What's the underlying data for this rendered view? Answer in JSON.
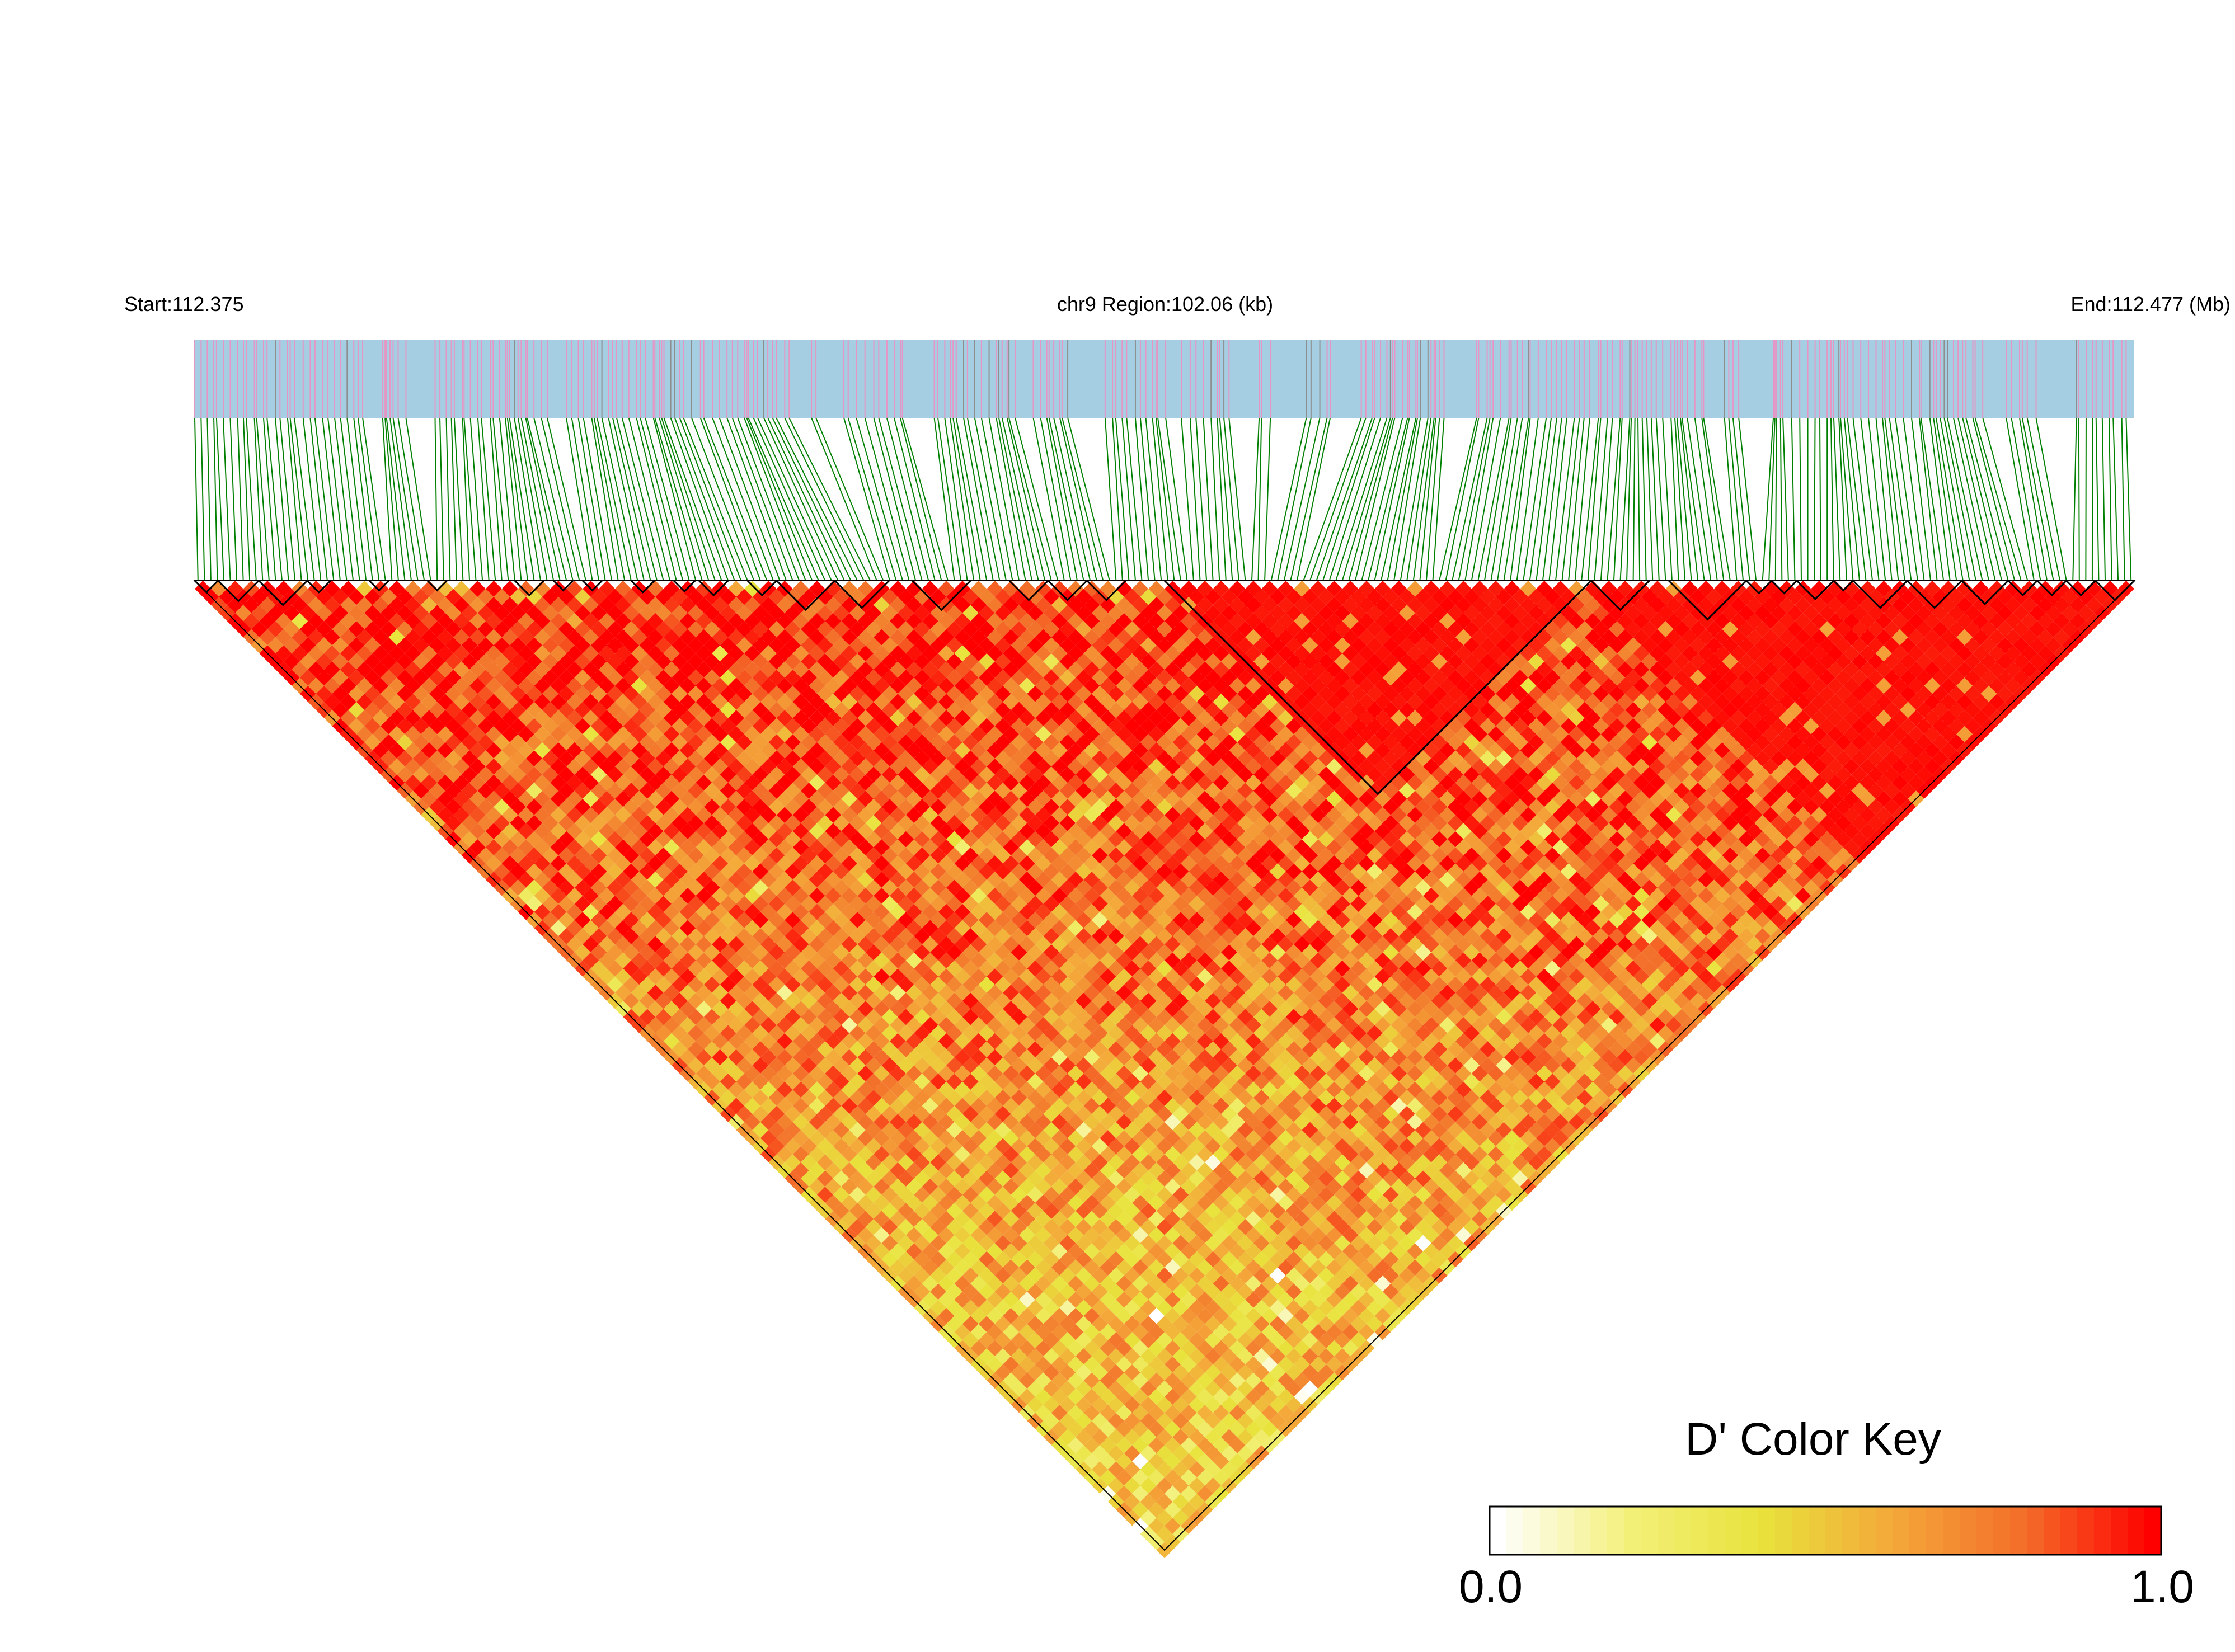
{
  "chart_data": {
    "type": "heatmap",
    "subtype": "LD block triangle plot (pairwise D')",
    "header": {
      "start_label": "Start:112.375",
      "region_label": "chr9 Region:102.06 (kb)",
      "end_label": "End:112.477 (Mb)"
    },
    "chromosome": "chr9",
    "region": {
      "start_mb": 112.375,
      "end_mb": 112.477,
      "length_kb": 102.06
    },
    "snp_count_approx": 300,
    "ld_blocks_outlined": [
      {
        "from_frac": 0.0,
        "to_frac": 0.012
      },
      {
        "from_frac": 0.012,
        "to_frac": 0.033
      },
      {
        "from_frac": 0.033,
        "to_frac": 0.058
      },
      {
        "from_frac": 0.058,
        "to_frac": 0.07
      },
      {
        "from_frac": 0.09,
        "to_frac": 0.1
      },
      {
        "from_frac": 0.12,
        "to_frac": 0.13
      },
      {
        "from_frac": 0.165,
        "to_frac": 0.18
      },
      {
        "from_frac": 0.185,
        "to_frac": 0.195
      },
      {
        "from_frac": 0.2,
        "to_frac": 0.21
      },
      {
        "from_frac": 0.225,
        "to_frac": 0.237
      },
      {
        "from_frac": 0.247,
        "to_frac": 0.258
      },
      {
        "from_frac": 0.26,
        "to_frac": 0.275
      },
      {
        "from_frac": 0.285,
        "to_frac": 0.3
      },
      {
        "from_frac": 0.3,
        "to_frac": 0.33
      },
      {
        "from_frac": 0.33,
        "to_frac": 0.358
      },
      {
        "from_frac": 0.37,
        "to_frac": 0.4
      },
      {
        "from_frac": 0.42,
        "to_frac": 0.44
      },
      {
        "from_frac": 0.44,
        "to_frac": 0.46
      },
      {
        "from_frac": 0.46,
        "to_frac": 0.48
      },
      {
        "from_frac": 0.5,
        "to_frac": 0.72
      },
      {
        "from_frac": 0.72,
        "to_frac": 0.75
      },
      {
        "from_frac": 0.76,
        "to_frac": 0.8
      },
      {
        "from_frac": 0.8,
        "to_frac": 0.813
      },
      {
        "from_frac": 0.813,
        "to_frac": 0.826
      },
      {
        "from_frac": 0.826,
        "to_frac": 0.845
      },
      {
        "from_frac": 0.845,
        "to_frac": 0.855
      },
      {
        "from_frac": 0.855,
        "to_frac": 0.883
      },
      {
        "from_frac": 0.883,
        "to_frac": 0.911
      },
      {
        "from_frac": 0.911,
        "to_frac": 0.935
      },
      {
        "from_frac": 0.935,
        "to_frac": 0.95
      },
      {
        "from_frac": 0.95,
        "to_frac": 0.965
      },
      {
        "from_frac": 0.965,
        "to_frac": 0.98
      },
      {
        "from_frac": 0.98,
        "to_frac": 1.0
      }
    ],
    "ld_blocks_outlined_mirror_note": "",
    "color_key": {
      "title": "D' Color Key",
      "min_label": "0.0",
      "max_label": "1.0",
      "range": [
        0.0,
        1.0
      ],
      "colors": [
        "#ffffff",
        "#f3f07a",
        "#e8e33c",
        "#f4a93a",
        "#f36f2a",
        "#ff0000"
      ]
    },
    "colors": {
      "gene_track": "#a6cee3",
      "snp_tick": "#e695c4",
      "snp_tick_dark": "#8e8e8e",
      "connector": "#008000",
      "high_ld": "#ff0000"
    },
    "grid": false,
    "legend_position": "bottom-right"
  }
}
